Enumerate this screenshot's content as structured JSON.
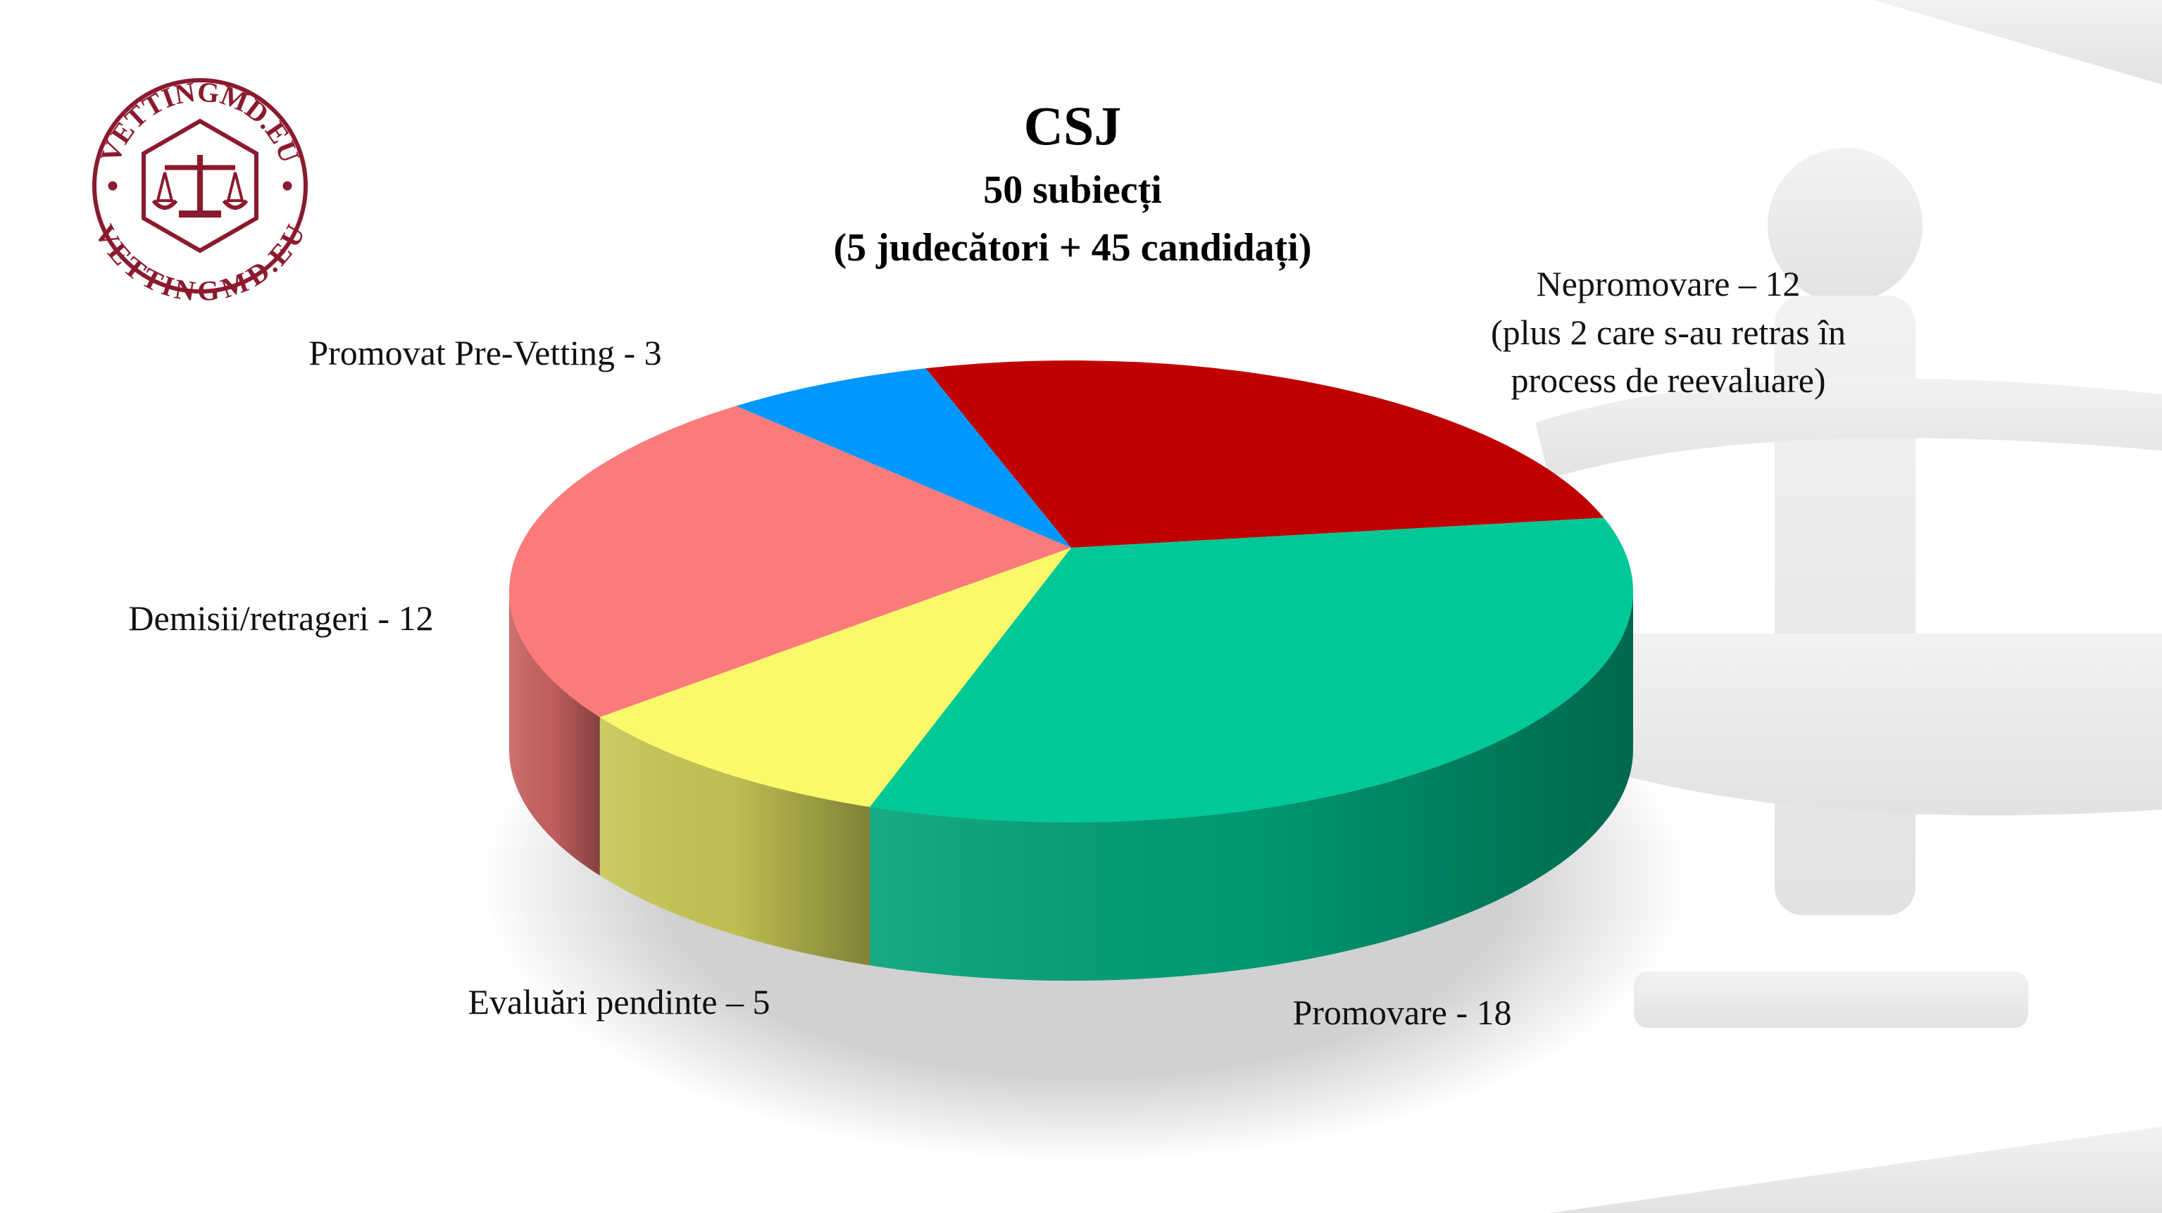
{
  "logo": {
    "text_top": "VETTINGMD.EU",
    "text_bottom": "VETTINGMD.EU"
  },
  "chart_data": {
    "type": "pie",
    "title": "CSJ",
    "subtitle": [
      "50 subiecți",
      "(5 judecători + 45 candidați)"
    ],
    "categories": [
      "Nepromovare – 12",
      "Promovare - 18",
      "Evaluări pendinte – 5",
      "Demisii/retrageri - 12",
      "Promovat Pre-Vetting - 3"
    ],
    "values": [
      12,
      18,
      5,
      12,
      3
    ],
    "colors": [
      "#c00000",
      "#00c896",
      "#f9f96a",
      "#fb7b7b",
      "#0098ff"
    ],
    "annotations": [
      "(plus 2 care s-au retras în",
      "process de reevaluare)"
    ]
  }
}
